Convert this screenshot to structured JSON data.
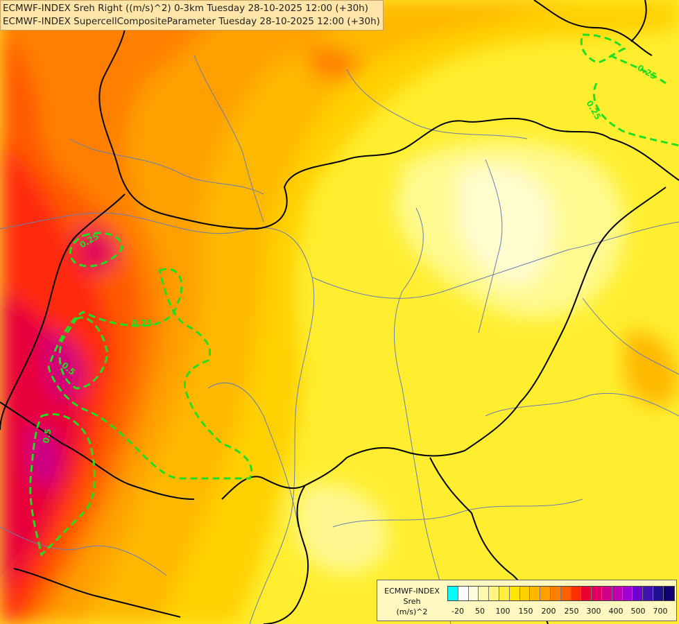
{
  "title_lines": [
    "ECMWF-INDEX Sreh Right ((m/s)^2) 0-3km Tuesday 28-10-2025 12:00 (+30h)",
    "ECMWF-INDEX SupercellCompositeParameter Tuesday 28-10-2025 12:00 (+30h)"
  ],
  "legend": {
    "line1": "ECMWF-INDEX",
    "line2": "Sreh",
    "line3": "(m/s)^2",
    "colors": [
      "#00ffff",
      "#ffffff",
      "#fffde0",
      "#fff8b0",
      "#fff580",
      "#ffee40",
      "#ffe600",
      "#ffd000",
      "#ffb800",
      "#ffa000",
      "#ff8000",
      "#ff6000",
      "#ff3000",
      "#ee0030",
      "#e00060",
      "#d0008a",
      "#c000b0",
      "#a000d0",
      "#7000d0",
      "#4010b0",
      "#201090",
      "#100070"
    ],
    "ticks": [
      "-20",
      "50",
      "100",
      "150",
      "200",
      "250",
      "300",
      "400",
      "500",
      "700"
    ]
  },
  "contour_labels": [
    "0.25",
    "0.25",
    "0.25",
    "0.25",
    "0.5",
    "0.5"
  ],
  "colors": {
    "contour": "#22dd22",
    "border": "#000000",
    "river": "#6a7bb0"
  }
}
